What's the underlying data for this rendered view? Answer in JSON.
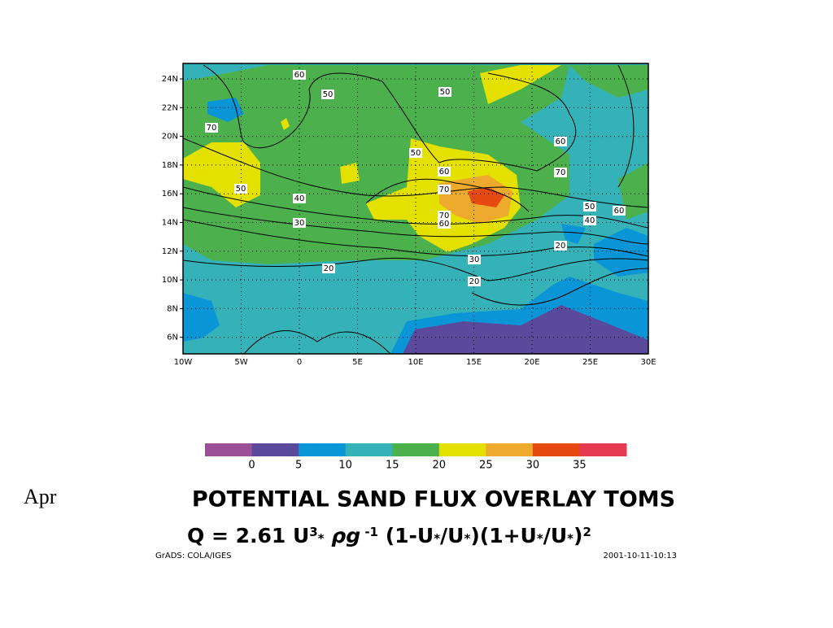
{
  "slide_label": "Apr",
  "map": {
    "x_ticks": [
      "10W",
      "5W",
      "0",
      "5E",
      "10E",
      "15E",
      "20E",
      "25E",
      "30E"
    ],
    "y_ticks": [
      "24N",
      "22N",
      "20N",
      "18N",
      "16N",
      "14N",
      "12N",
      "10N",
      "8N",
      "6N"
    ],
    "contour_labels": [
      "60",
      "50",
      "50",
      "70",
      "60",
      "50",
      "60",
      "70",
      "50",
      "70",
      "40",
      "50",
      "60",
      "70",
      "40",
      "30",
      "60",
      "20",
      "30",
      "20",
      "20"
    ]
  },
  "colorbar": {
    "colors": [
      "#9b4f96",
      "#5b4a9c",
      "#0a96d6",
      "#35b2b8",
      "#4cb14d",
      "#e4e000",
      "#eeaa2c",
      "#e64a10",
      "#e63a50"
    ],
    "labels": [
      "0",
      "5",
      "10",
      "15",
      "20",
      "25",
      "30",
      "35"
    ]
  },
  "title": "POTENTIAL SAND FLUX OVERLAY TOMS",
  "formula": [
    {
      "text": "Q = 2.61 U"
    },
    {
      "text": "3",
      "pos": "sup"
    },
    {
      "text": "*",
      "pos": "sub"
    },
    {
      "text": " ρg",
      "style": "italic"
    },
    {
      "text": " -1",
      "pos": "sup"
    },
    {
      "text": " (1-U"
    },
    {
      "text": "*",
      "pos": "sub"
    },
    {
      "text": "/U"
    },
    {
      "text": "*",
      "pos": "sub"
    },
    {
      "text": ")(1+U"
    },
    {
      "text": "*",
      "pos": "sub"
    },
    {
      "text": "/U"
    },
    {
      "text": "*",
      "pos": "sub"
    },
    {
      "text": ")"
    },
    {
      "text": "2",
      "pos": "sup"
    }
  ],
  "footer_left": "GrADS: COLA/IGES",
  "footer_right": "2001-10-11-10:13"
}
